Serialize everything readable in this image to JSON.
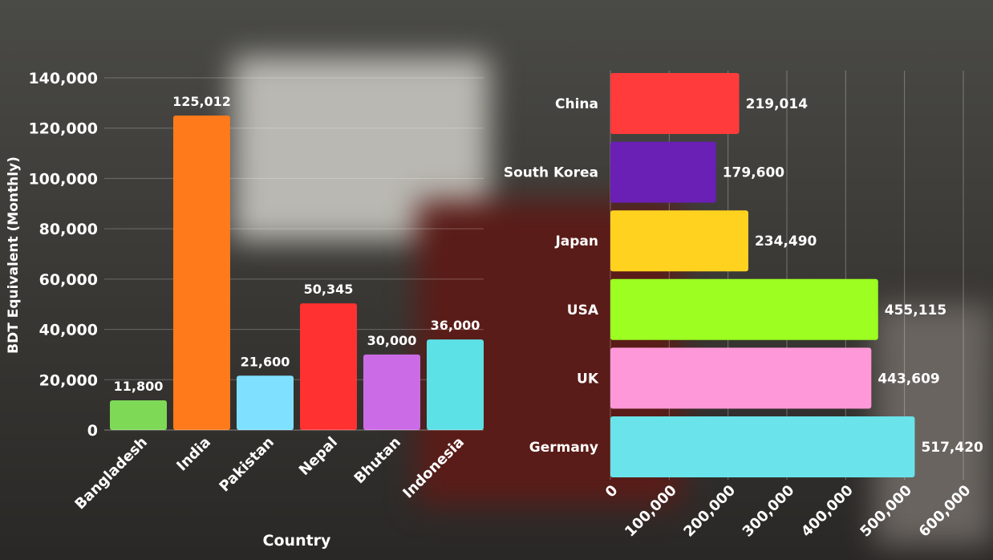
{
  "chart_data": [
    {
      "type": "bar",
      "orientation": "vertical",
      "categories": [
        "Bangladesh",
        "India",
        "Pakistan",
        "Nepal",
        "Bhutan",
        "Indonesia"
      ],
      "values": [
        11800,
        125012,
        21600,
        50345,
        30000,
        36000
      ],
      "data_labels": [
        "11,800",
        "125,012",
        "21,600",
        "50,345",
        "30,000",
        "36,000"
      ],
      "colors": [
        "#7ed957",
        "#ff7a1a",
        "#7fe1ff",
        "#ff3131",
        "#cb6ce6",
        "#5ce1e6"
      ],
      "xlabel": "Country",
      "ylabel": "BDT Equivalent (Monthly)",
      "ylim": [
        0,
        140000
      ],
      "yticks": [
        "0",
        "20,000",
        "40,000",
        "60,000",
        "80,000",
        "100,000",
        "120,000",
        "140,000"
      ],
      "grid": true
    },
    {
      "type": "bar",
      "orientation": "horizontal",
      "categories": [
        "China",
        "South Korea",
        "Japan",
        "USA",
        "UK",
        "Germany"
      ],
      "values": [
        219014,
        179600,
        234490,
        455115,
        443609,
        517420
      ],
      "data_labels": [
        "219,014",
        "179,600",
        "234,490",
        "455,115",
        "443,609",
        "517,420"
      ],
      "colors": [
        "#ff3b3b",
        "#6a1fb5",
        "#ffd21f",
        "#9cff21",
        "#ff98d9",
        "#6ae3ea"
      ],
      "xlim": [
        0,
        600000
      ],
      "xticks": [
        "0",
        "100,000",
        "200,000",
        "300,000",
        "400,000",
        "500,000",
        "600,000"
      ],
      "grid": true
    }
  ]
}
